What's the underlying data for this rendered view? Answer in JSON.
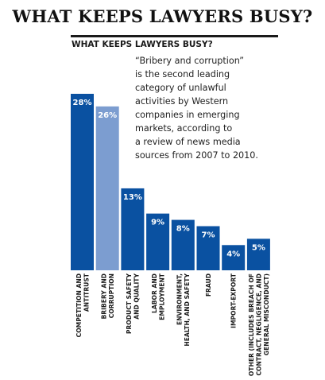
{
  "header": {
    "title": "WHAT KEEPS LAWYERS BUSY?",
    "subtitle": "WHAT KEEPS LAWYERS BUSY?"
  },
  "blurb": {
    "lines": [
      "“Bribery and corruption”",
      "is the second leading",
      "category of unlawful",
      "activities by Western",
      "companies in emerging",
      "markets, according to",
      "a review of news media",
      "sources from 2007 to 2010."
    ]
  },
  "colors": {
    "primary_bar": "#0a51a1",
    "highlight_bar": "#7c9dd0"
  },
  "chart_data": {
    "type": "bar",
    "categories": [
      [
        "COMPETITION AND",
        "ANTITRUST"
      ],
      [
        "BRIBERY AND",
        "CORRUPTION"
      ],
      [
        "PRODUCT SAFETY",
        "AND QUALITY"
      ],
      [
        "LABOR AND",
        "EMPLOYMENT"
      ],
      [
        "ENVIRONMENT,",
        "HEALTH, AND SAFETY"
      ],
      [
        "FRAUD"
      ],
      [
        "IMPORT-EXPORT"
      ],
      [
        "OTHER (INCLUDES BREACH OF",
        "CONTRACT, NEGLIGENCE, AND",
        "GENERAL MISCONDUCT)"
      ]
    ],
    "values": [
      28,
      26,
      13,
      9,
      8,
      7,
      4,
      5
    ],
    "value_labels": [
      "28%",
      "26%",
      "13%",
      "9%",
      "8%",
      "7%",
      "4%",
      "5%"
    ],
    "highlight_index": 1,
    "ylim": [
      0,
      28
    ],
    "grid": false,
    "legend": "none"
  }
}
